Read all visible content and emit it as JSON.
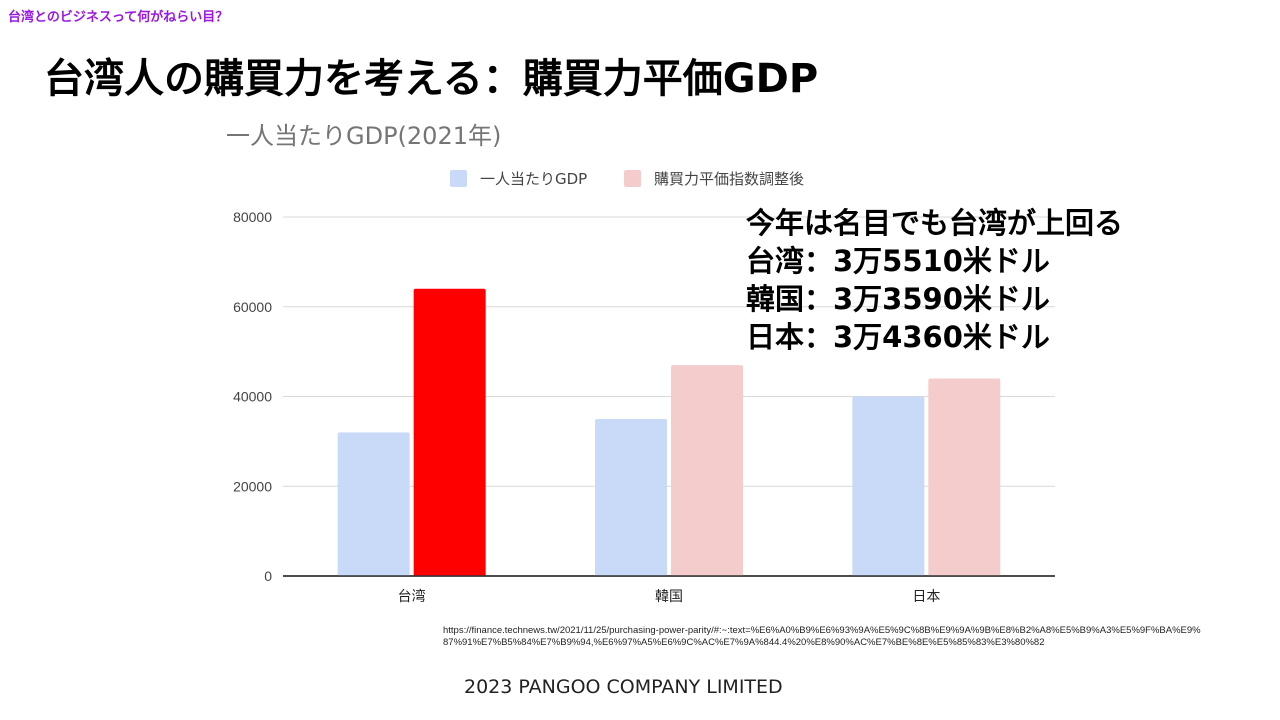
{
  "header_tag": "台湾とのビジネスって何がねらい目？",
  "slide_title": "台湾人の購買力を考える：購買力平価GDP",
  "chart_data": {
    "type": "bar",
    "title": "一人当たりGDP(2021年)",
    "categories": [
      "台湾",
      "韓国",
      "日本"
    ],
    "series": [
      {
        "name": "一人当たりGDP",
        "values": [
          32000,
          35000,
          40000
        ],
        "color": "#c9daf8"
      },
      {
        "name": "購買力平価指数調整後",
        "values": [
          64000,
          47000,
          44000
        ],
        "color": "#f4cccc",
        "highlight": {
          "index": 0,
          "color": "#ff0000"
        }
      }
    ],
    "ylim": [
      0,
      80000
    ],
    "yticks": [
      "0",
      "20000",
      "40000",
      "60000",
      "80000"
    ],
    "grid": true,
    "legend_position": "top"
  },
  "notes": [
    "今年は名目でも台湾が上回る",
    "台湾：3万5510米ドル",
    "韓国：3万3590米ドル",
    "日本：3万4360米ドル"
  ],
  "source_url": "https://finance.technews.tw/2021/11/25/purchasing-power-parity/#:~:text=%E6%A0%B9%E6%93%9A%E5%9C%8B%E9%9A%9B%E8%B2%A8%E5%B9%A3%E5%9F%BA%E9%87%91%E7%B5%84%E7%B9%94,%E6%97%A5%E6%9C%AC%E7%9A%844.4%20%E8%90%AC%E7%BE%8E%E5%85%83%E3%80%82",
  "footer": "2023 PANGOO COMPANY LIMITED"
}
